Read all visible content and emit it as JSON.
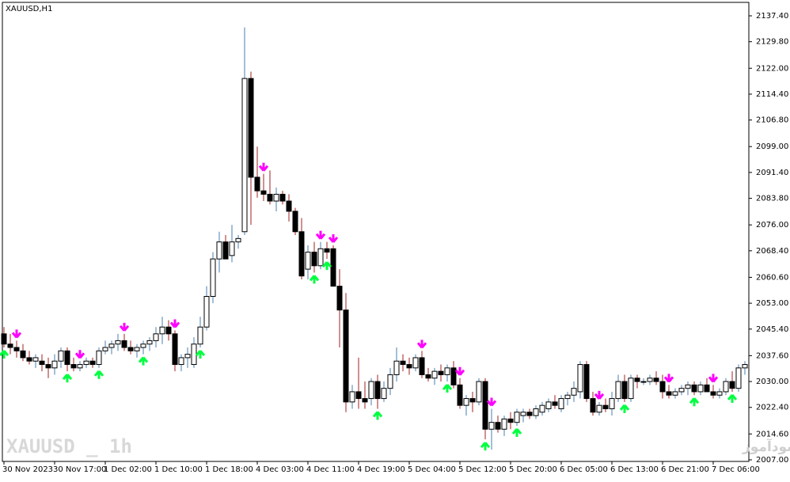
{
  "chart_data": {
    "type": "candlestick",
    "title": "XAUUSD,H1",
    "watermark": "XAUUSD _ 1h",
    "caption": "انتشار در سایت سودآموز",
    "up_color": "#ffffff",
    "down_color": "#000000",
    "up_wick_color": "#4a7fb0",
    "down_wick_color": "#a02020",
    "buy_color": "#00ff40",
    "sell_color": "#ff00ff",
    "ylim": [
      2007.0,
      2137.4
    ],
    "yticks": [
      {
        "value": 2007.0,
        "label": "2007.00"
      },
      {
        "value": 2014.6,
        "label": "2014.60"
      },
      {
        "value": 2022.4,
        "label": "2022.40"
      },
      {
        "value": 2030.0,
        "label": "2030.00"
      },
      {
        "value": 2037.6,
        "label": "2037.60"
      },
      {
        "value": 2045.4,
        "label": "2045.40"
      },
      {
        "value": 2053.0,
        "label": "2053.00"
      },
      {
        "value": 2060.6,
        "label": "2060.60"
      },
      {
        "value": 2068.4,
        "label": "2068.40"
      },
      {
        "value": 2076.0,
        "label": "2076.00"
      },
      {
        "value": 2083.8,
        "label": "2083.80"
      },
      {
        "value": 2091.4,
        "label": "2091.40"
      },
      {
        "value": 2099.0,
        "label": "2099.00"
      },
      {
        "value": 2106.8,
        "label": "2106.80"
      },
      {
        "value": 2114.4,
        "label": "2114.40"
      },
      {
        "value": 2122.0,
        "label": "2122.00"
      },
      {
        "value": 2129.8,
        "label": "2129.80"
      },
      {
        "value": 2137.4,
        "label": "2137.40"
      }
    ],
    "categories": [
      "30 Nov 2023",
      null,
      null,
      null,
      null,
      null,
      null,
      null,
      "30 Nov 17:00",
      null,
      null,
      null,
      null,
      null,
      null,
      null,
      "1 Dec 02:00",
      null,
      null,
      null,
      null,
      null,
      null,
      null,
      "1 Dec 10:00",
      null,
      null,
      null,
      null,
      null,
      null,
      null,
      "1 Dec 18:00",
      null,
      null,
      null,
      null,
      null,
      null,
      null,
      "4 Dec 03:00",
      null,
      null,
      null,
      null,
      null,
      null,
      null,
      "4 Dec 11:00",
      null,
      null,
      null,
      null,
      null,
      null,
      null,
      "4 Dec 19:00",
      null,
      null,
      null,
      null,
      null,
      null,
      null,
      "5 Dec 04:00",
      null,
      null,
      null,
      null,
      null,
      null,
      null,
      "5 Dec 12:00",
      null,
      null,
      null,
      null,
      null,
      null,
      null,
      "5 Dec 20:00",
      null,
      null,
      null,
      null,
      null,
      null,
      null,
      "6 Dec 05:00",
      null,
      null,
      null,
      null,
      null,
      null,
      null,
      "6 Dec 13:00",
      null,
      null,
      null,
      null,
      null,
      null,
      null,
      "6 Dec 21:00",
      null,
      null,
      null,
      null,
      null,
      null,
      null,
      "7 Dec 06:00",
      null,
      null,
      null,
      null,
      null
    ],
    "candles": [
      [
        2044,
        2046,
        2040,
        2041
      ],
      [
        2041,
        2044,
        2038,
        2040
      ],
      [
        2040,
        2042,
        2037,
        2039
      ],
      [
        2039,
        2041,
        2036,
        2037
      ],
      [
        2037,
        2039,
        2035,
        2036
      ],
      [
        2036,
        2038,
        2034,
        2037
      ],
      [
        2036,
        2038,
        2033,
        2035
      ],
      [
        2035,
        2037,
        2031,
        2034
      ],
      [
        2034,
        2038,
        2032,
        2036
      ],
      [
        2036,
        2040,
        2034,
        2039
      ],
      [
        2039,
        2040,
        2033,
        2035
      ],
      [
        2035,
        2037,
        2033,
        2034
      ],
      [
        2034,
        2036,
        2033,
        2035
      ],
      [
        2035,
        2037,
        2034,
        2036
      ],
      [
        2036,
        2037,
        2034,
        2035
      ],
      [
        2035,
        2040,
        2034,
        2039
      ],
      [
        2039,
        2042,
        2038,
        2040
      ],
      [
        2040,
        2042,
        2038,
        2041
      ],
      [
        2041,
        2044,
        2039,
        2042
      ],
      [
        2042,
        2044,
        2039,
        2040
      ],
      [
        2040,
        2042,
        2038,
        2039
      ],
      [
        2039,
        2041,
        2037,
        2040
      ],
      [
        2040,
        2042,
        2038,
        2041
      ],
      [
        2041,
        2043,
        2039,
        2042
      ],
      [
        2042,
        2046,
        2040,
        2044
      ],
      [
        2044,
        2049,
        2041,
        2046
      ],
      [
        2046,
        2048,
        2042,
        2044
      ],
      [
        2044,
        2045,
        2033,
        2035
      ],
      [
        2035,
        2038,
        2033,
        2037
      ],
      [
        2037,
        2040,
        2034,
        2038
      ],
      [
        2035,
        2043,
        2034,
        2041
      ],
      [
        2041,
        2049,
        2040,
        2046
      ],
      [
        2046,
        2058,
        2045,
        2055
      ],
      [
        2055,
        2068,
        2053,
        2066
      ],
      [
        2066,
        2074,
        2062,
        2071
      ],
      [
        2071,
        2073,
        2066,
        2066
      ],
      [
        2067,
        2076,
        2065,
        2071
      ],
      [
        2071,
        2073,
        2069,
        2072
      ],
      [
        2074,
        2134,
        2073,
        2119
      ],
      [
        2119,
        2121,
        2076,
        2090
      ],
      [
        2090,
        2099,
        2084,
        2086
      ],
      [
        2086,
        2091,
        2083,
        2085
      ],
      [
        2085,
        2092,
        2082,
        2083
      ],
      [
        2083,
        2087,
        2080,
        2085
      ],
      [
        2085,
        2086,
        2082,
        2083
      ],
      [
        2083,
        2085,
        2077,
        2080
      ],
      [
        2080,
        2081,
        2073,
        2074
      ],
      [
        2074,
        2078,
        2060,
        2061
      ],
      [
        2063,
        2070,
        2060,
        2068
      ],
      [
        2068,
        2071,
        2062,
        2064
      ],
      [
        2064,
        2071,
        2063,
        2069
      ],
      [
        2069,
        2071,
        2066,
        2068
      ],
      [
        2069,
        2070,
        2058,
        2058
      ],
      [
        2058,
        2063,
        2040,
        2051
      ],
      [
        2051,
        2056,
        2021,
        2024
      ],
      [
        2024,
        2029,
        2022,
        2027
      ],
      [
        2027,
        2037,
        2022,
        2025
      ],
      [
        2025,
        2030,
        2022,
        2024
      ],
      [
        2025,
        2031,
        2023,
        2030
      ],
      [
        2030,
        2032,
        2022,
        2025
      ],
      [
        2025,
        2030,
        2024,
        2028
      ],
      [
        2028,
        2034,
        2026,
        2032
      ],
      [
        2032,
        2040,
        2030,
        2036
      ],
      [
        2036,
        2038,
        2033,
        2035
      ],
      [
        2035,
        2037,
        2032,
        2034
      ],
      [
        2034,
        2038,
        2033,
        2037
      ],
      [
        2037,
        2039,
        2031,
        2032
      ],
      [
        2032,
        2034,
        2030,
        2031
      ],
      [
        2031,
        2034,
        2029,
        2033
      ],
      [
        2033,
        2035,
        2030,
        2032
      ],
      [
        2032,
        2035,
        2030,
        2034
      ],
      [
        2034,
        2036,
        2028,
        2029
      ],
      [
        2029,
        2031,
        2022,
        2023
      ],
      [
        2023,
        2026,
        2020,
        2025
      ],
      [
        2025,
        2027,
        2021,
        2024
      ],
      [
        2024,
        2031,
        2023,
        2030
      ],
      [
        2030,
        2031,
        2013,
        2016
      ],
      [
        2016,
        2022,
        2010,
        2018
      ],
      [
        2018,
        2020,
        2015,
        2016
      ],
      [
        2016,
        2020,
        2014,
        2019
      ],
      [
        2019,
        2021,
        2016,
        2018
      ],
      [
        2018,
        2022,
        2017,
        2021
      ],
      [
        2020,
        2022,
        2018,
        2021
      ],
      [
        2021,
        2022,
        2019,
        2020
      ],
      [
        2020,
        2023,
        2019,
        2022
      ],
      [
        2021,
        2024,
        2020,
        2023
      ],
      [
        2022,
        2025,
        2021,
        2024
      ],
      [
        2024,
        2026,
        2022,
        2023
      ],
      [
        2022,
        2026,
        2021,
        2025
      ],
      [
        2025,
        2027,
        2023,
        2026
      ],
      [
        2026,
        2030,
        2024,
        2028
      ],
      [
        2027,
        2036,
        2025,
        2035
      ],
      [
        2035,
        2036,
        2024,
        2025
      ],
      [
        2025,
        2027,
        2020,
        2021
      ],
      [
        2021,
        2024,
        2020,
        2023
      ],
      [
        2023,
        2025,
        2021,
        2022
      ],
      [
        2022,
        2027,
        2020,
        2025
      ],
      [
        2025,
        2032,
        2024,
        2030
      ],
      [
        2030,
        2032,
        2024,
        2025
      ],
      [
        2025,
        2032,
        2024,
        2031
      ],
      [
        2031,
        2032,
        2028,
        2030
      ],
      [
        2030,
        2031,
        2029,
        2030
      ],
      [
        2030,
        2032,
        2029,
        2031
      ],
      [
        2031,
        2033,
        2029,
        2030
      ],
      [
        2030,
        2032,
        2025,
        2027
      ],
      [
        2027,
        2029,
        2025,
        2026
      ],
      [
        2026,
        2028,
        2025,
        2027
      ],
      [
        2027,
        2029,
        2026,
        2028
      ],
      [
        2028,
        2030,
        2026,
        2029
      ],
      [
        2029,
        2030,
        2026,
        2027
      ],
      [
        2027,
        2030,
        2026,
        2029
      ],
      [
        2029,
        2031,
        2027,
        2027
      ],
      [
        2027,
        2029,
        2025,
        2026
      ],
      [
        2026,
        2028,
        2025,
        2027
      ],
      [
        2027,
        2031,
        2026,
        2030
      ],
      [
        2030,
        2033,
        2027,
        2028
      ],
      [
        2028,
        2035,
        2027,
        2034
      ],
      [
        2034,
        2036,
        2032,
        2035
      ]
    ],
    "sell_signals": [
      2,
      12,
      19,
      27,
      41,
      50,
      52,
      66,
      72,
      77,
      94,
      105,
      112
    ],
    "buy_signals": [
      0,
      10,
      15,
      22,
      31,
      49,
      51,
      59,
      70,
      76,
      81,
      98,
      109,
      115
    ]
  }
}
